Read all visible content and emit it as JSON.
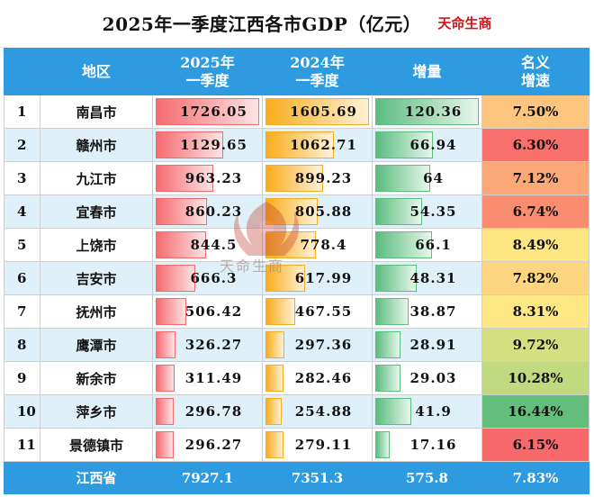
{
  "header": {
    "title": "2025年一季度江西各市GDP（亿元）",
    "brand": "天命生商"
  },
  "columns": {
    "rank": "",
    "region": "地区",
    "q2025": "2025年\n一季度",
    "q2024": "2024年\n一季度",
    "increase": "增量",
    "growth": "名义\n增速"
  },
  "colors": {
    "header_bg": "#2e9be0",
    "bar_2025": "#f56b6f",
    "bar_2024": "#f9ad1c",
    "bar_increase": "#5bbd7e",
    "brand": "#d4141b"
  },
  "rows": [
    {
      "rank": "1",
      "city": "南昌市",
      "q2025": "1726.05",
      "q2024": "1605.69",
      "increase": "120.36",
      "growth": "7.50%",
      "growth_color": "#fdc57e"
    },
    {
      "rank": "2",
      "city": "赣州市",
      "q2025": "1129.65",
      "q2024": "1062.71",
      "increase": "66.94",
      "growth": "6.30%",
      "growth_color": "#f8706b"
    },
    {
      "rank": "3",
      "city": "九江市",
      "q2025": "963.23",
      "q2024": "899.23",
      "increase": "64",
      "growth": "7.12%",
      "growth_color": "#fba876"
    },
    {
      "rank": "4",
      "city": "宜春市",
      "q2025": "860.23",
      "q2024": "805.88",
      "increase": "54.35",
      "growth": "6.74%",
      "growth_color": "#fa8c70"
    },
    {
      "rank": "5",
      "city": "上饶市",
      "q2025": "844.5",
      "q2024": "778.4",
      "increase": "66.1",
      "growth": "8.49%",
      "growth_color": "#fee783"
    },
    {
      "rank": "6",
      "city": "吉安市",
      "q2025": "666.3",
      "q2024": "617.99",
      "increase": "48.31",
      "growth": "7.82%",
      "growth_color": "#fed580"
    },
    {
      "rank": "7",
      "city": "抚州市",
      "q2025": "506.42",
      "q2024": "467.55",
      "increase": "38.87",
      "growth": "8.31%",
      "growth_color": "#ffe883"
    },
    {
      "rank": "8",
      "city": "鹰潭市",
      "q2025": "326.27",
      "q2024": "297.36",
      "increase": "28.91",
      "growth": "9.72%",
      "growth_color": "#d3df81"
    },
    {
      "rank": "9",
      "city": "新余市",
      "q2025": "311.49",
      "q2024": "282.46",
      "increase": "29.03",
      "growth": "10.28%",
      "growth_color": "#c2da7f"
    },
    {
      "rank": "10",
      "city": "萍乡市",
      "q2025": "296.78",
      "q2024": "254.88",
      "increase": "41.9",
      "growth": "16.44%",
      "growth_color": "#63be7b"
    },
    {
      "rank": "11",
      "city": "景德镇市",
      "q2025": "296.27",
      "q2024": "279.11",
      "increase": "17.16",
      "growth": "6.15%",
      "growth_color": "#f8696b"
    }
  ],
  "total": {
    "city": "江西省",
    "q2025": "7927.1",
    "q2024": "7351.3",
    "increase": "575.8",
    "growth": "7.83%"
  },
  "watermark": {
    "text": "天命生商",
    "icon": "phoenix-logo-icon"
  }
}
